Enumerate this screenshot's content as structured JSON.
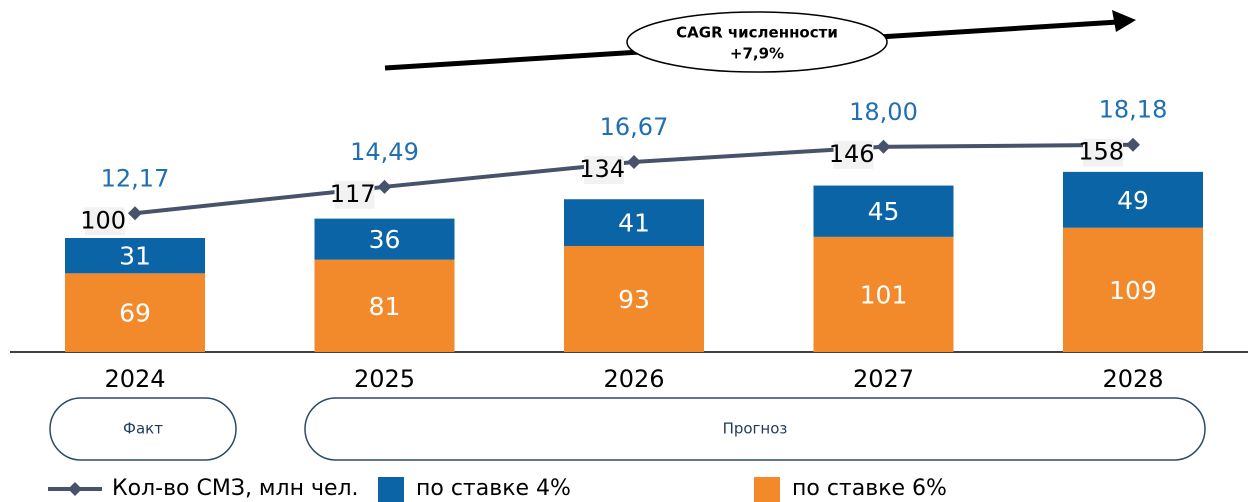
{
  "chart_data": {
    "type": "bar",
    "annotation": [
      "CAGR численности",
      "+7,9%"
    ],
    "categories": [
      "2024",
      "2025",
      "2026",
      "2027",
      "2028"
    ],
    "series": [
      {
        "name": "по ставке 6%",
        "color": "#f28a2c",
        "values": [
          69,
          81,
          93,
          101,
          109
        ]
      },
      {
        "name": "по ставке 4%",
        "color": "#0b64a6",
        "values": [
          31,
          36,
          41,
          45,
          49
        ]
      },
      {
        "name": "Кол-во СМЗ, млн чел.",
        "color": "#46536b",
        "axis": "y2",
        "type": "line",
        "values": [
          12.17,
          14.49,
          16.67,
          18.0,
          18.18
        ],
        "value_labels": [
          "12,17",
          "14,49",
          "16,67",
          "18,00",
          "18,18"
        ]
      }
    ],
    "total_labels": [
      100,
      117,
      134,
      146,
      158
    ],
    "periods": [
      "Факт",
      "Прогноз"
    ],
    "ylim": [
      0,
      300
    ],
    "y2lim": [
      0,
      30
    ]
  }
}
